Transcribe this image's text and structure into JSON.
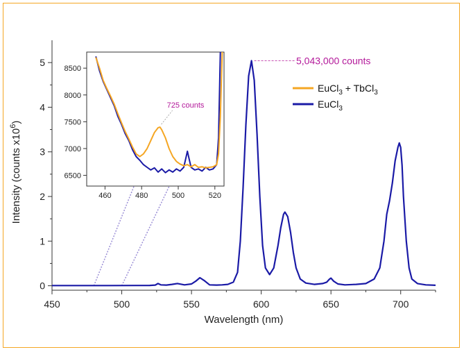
{
  "chart_data": {
    "type": "line",
    "title": "",
    "xlabel": "Wavelength (nm)",
    "ylabel_prefix": "Intensity (counts x10",
    "ylabel_exp": "6",
    "ylabel_suffix": ")",
    "xlim": [
      450,
      725
    ],
    "ylim": [
      -0.1,
      5.5
    ],
    "xticks": [
      450,
      500,
      550,
      600,
      650,
      700
    ],
    "yticks": [
      0,
      1,
      2,
      3,
      4,
      5
    ],
    "grid": false,
    "legend": {
      "placement": "top-right",
      "entries": [
        {
          "base": "EuCl",
          "sub": "3",
          "rest": " + TbCl",
          "sub2": "3",
          "color": "#f5a623"
        },
        {
          "base": "EuCl",
          "sub": "3",
          "rest": "",
          "sub2": "",
          "color": "#1a1aa6"
        }
      ]
    },
    "series": [
      {
        "color": "#1a1aa6",
        "x": [
          450,
          470,
          490,
          510,
          520,
          524,
          526,
          528,
          532,
          536,
          540,
          545,
          550,
          553,
          556,
          559,
          563,
          568,
          572,
          576,
          580,
          583,
          585,
          587,
          589,
          591,
          593,
          595,
          597,
          599,
          601,
          603,
          606,
          609,
          612,
          614,
          616,
          617,
          619,
          621,
          623,
          625,
          628,
          632,
          638,
          644,
          647,
          649,
          650,
          652,
          655,
          660,
          668,
          675,
          681,
          685,
          688,
          690,
          692,
          694,
          696,
          698,
          699,
          700,
          701,
          702,
          704,
          706,
          708,
          712,
          718,
          725
        ],
        "y": [
          0.005,
          0.005,
          0.005,
          0.006,
          0.008,
          0.015,
          0.05,
          0.02,
          0.015,
          0.03,
          0.05,
          0.02,
          0.04,
          0.1,
          0.18,
          0.12,
          0.02,
          0.015,
          0.02,
          0.03,
          0.08,
          0.3,
          1.0,
          2.2,
          3.6,
          4.7,
          5.043,
          4.6,
          3.4,
          2.0,
          0.9,
          0.4,
          0.25,
          0.4,
          0.9,
          1.3,
          1.6,
          1.65,
          1.55,
          1.2,
          0.75,
          0.4,
          0.15,
          0.06,
          0.03,
          0.05,
          0.08,
          0.15,
          0.17,
          0.1,
          0.04,
          0.02,
          0.03,
          0.05,
          0.15,
          0.4,
          1.0,
          1.6,
          1.9,
          2.3,
          2.8,
          3.1,
          3.2,
          3.1,
          2.7,
          2.0,
          1.0,
          0.4,
          0.15,
          0.05,
          0.02,
          0.01
        ]
      }
    ],
    "inset": {
      "xlim": [
        450,
        525
      ],
      "ylim": [
        6300,
        8800
      ],
      "xticks": [
        460,
        480,
        500,
        520
      ],
      "yticks": [
        6500,
        7000,
        7500,
        8000,
        8500
      ],
      "series": [
        {
          "color": "#1a1aa6",
          "x": [
            455,
            457,
            459,
            461,
            463,
            465,
            467,
            469,
            471,
            473,
            475,
            477,
            479,
            481,
            483,
            485,
            487,
            489,
            491,
            493,
            495,
            497,
            499,
            501,
            503,
            504,
            505,
            506,
            507,
            509,
            511,
            513,
            515,
            517,
            519,
            521,
            522,
            523
          ],
          "y": [
            8720,
            8450,
            8250,
            8100,
            7950,
            7800,
            7600,
            7450,
            7280,
            7150,
            6980,
            6850,
            6780,
            6700,
            6650,
            6600,
            6640,
            6560,
            6620,
            6550,
            6600,
            6560,
            6620,
            6580,
            6650,
            6800,
            6950,
            6800,
            6650,
            6600,
            6620,
            6580,
            6650,
            6600,
            6620,
            6700,
            7200,
            8800
          ]
        },
        {
          "color": "#f5a623",
          "x": [
            455,
            457,
            459,
            461,
            463,
            465,
            467,
            469,
            471,
            473,
            475,
            477,
            479,
            481,
            483,
            485,
            487,
            489,
            490,
            491,
            493,
            495,
            497,
            499,
            501,
            503,
            505,
            507,
            509,
            511,
            513,
            515,
            517,
            519,
            521,
            522,
            523,
            524
          ],
          "y": [
            8700,
            8500,
            8270,
            8120,
            7980,
            7830,
            7650,
            7480,
            7320,
            7180,
            7030,
            6900,
            6850,
            6900,
            7000,
            7150,
            7300,
            7390,
            7400,
            7350,
            7200,
            7000,
            6850,
            6760,
            6710,
            6680,
            6700,
            6660,
            6700,
            6650,
            6660,
            6640,
            6650,
            6660,
            6700,
            6900,
            7600,
            8800
          ]
        }
      ]
    },
    "annotations": {
      "peak_label": "5,043,000 counts",
      "peak_x": 593,
      "peak_y": 5.043,
      "inset_label": "725 counts",
      "inset_x": 490,
      "inset_y": 7400,
      "link_lines_x": [
        480,
        500
      ],
      "annotation_color": "#b3189a",
      "link_color": "#9b8fd6"
    }
  }
}
